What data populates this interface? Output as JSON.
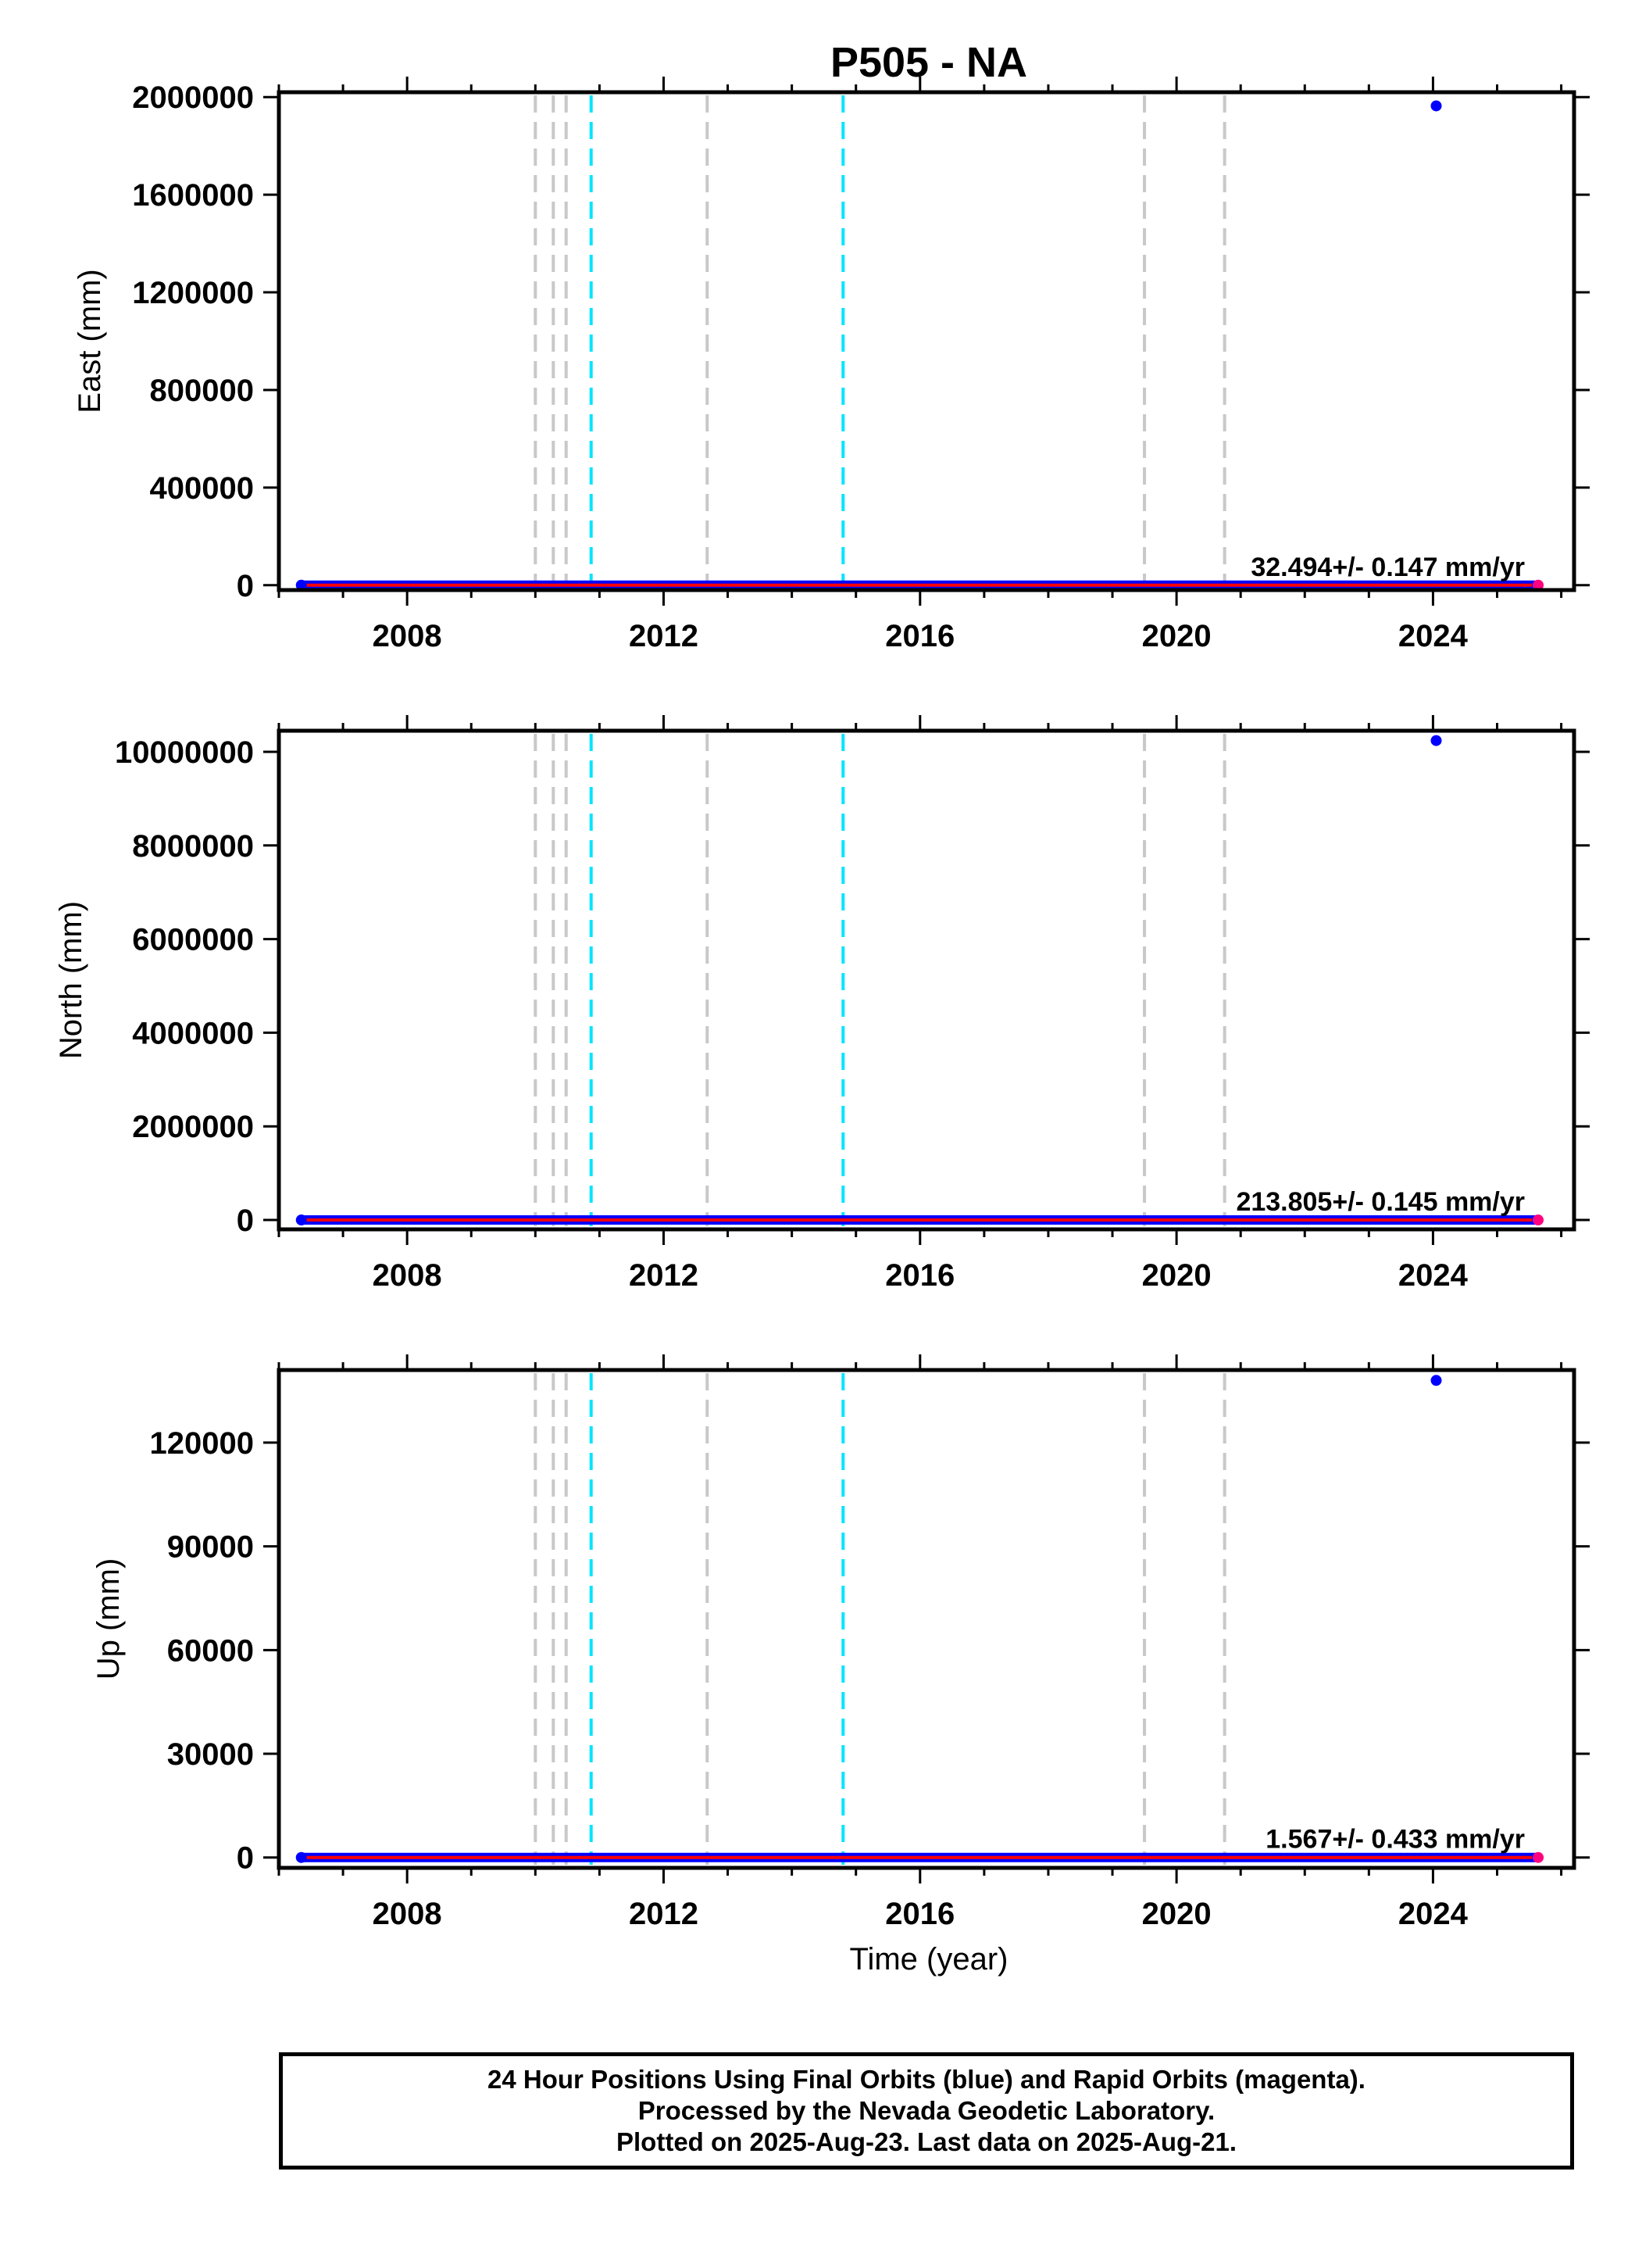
{
  "chart_data": {
    "type": "scatter",
    "title": "P505 - NA",
    "xlabel": "Time (year)",
    "xlim": [
      2006.0,
      2026.2
    ],
    "x_ticks": [
      2008,
      2012,
      2016,
      2020,
      2024
    ],
    "x_tick_labels": [
      "2008",
      "2012",
      "2016",
      "2020",
      "2024"
    ],
    "x_minor_ticks": [
      2006,
      2007,
      2009,
      2010,
      2011,
      2013,
      2014,
      2015,
      2017,
      2018,
      2019,
      2021,
      2022,
      2023,
      2025,
      2026
    ],
    "data_range": [
      2006.35,
      2025.64
    ],
    "event_lines": [
      {
        "x": 2010.0,
        "color": "#c8c8c8"
      },
      {
        "x": 2010.28,
        "color": "#c8c8c8"
      },
      {
        "x": 2010.48,
        "color": "#c8c8c8"
      },
      {
        "x": 2010.87,
        "color": "#00e5ff"
      },
      {
        "x": 2012.68,
        "color": "#c8c8c8"
      },
      {
        "x": 2014.8,
        "color": "#00e5ff"
      },
      {
        "x": 2019.5,
        "color": "#c8c8c8"
      },
      {
        "x": 2020.75,
        "color": "#c8c8c8"
      }
    ],
    "panels": [
      {
        "ylabel": "East (mm)",
        "ylim": [
          -20000,
          2020000
        ],
        "y_ticks": [
          0,
          400000,
          800000,
          1200000,
          1600000,
          2000000
        ],
        "y_tick_labels": [
          "0",
          "400000",
          "800000",
          "1200000",
          "1600000",
          "2000000"
        ],
        "rate_text": "32.494+/- 0.147 mm/yr",
        "outlier": {
          "x": 2024.05,
          "y": 1964000
        },
        "baseline": 0
      },
      {
        "ylabel": "North (mm)",
        "ylim": [
          -200000,
          10450000
        ],
        "y_ticks": [
          0,
          2000000,
          4000000,
          6000000,
          8000000,
          10000000
        ],
        "y_tick_labels": [
          "0",
          "2000000",
          "4000000",
          "6000000",
          "8000000",
          "10000000"
        ],
        "rate_text": "213.805+/- 0.145 mm/yr",
        "outlier": {
          "x": 2024.05,
          "y": 10240000
        },
        "baseline": 0
      },
      {
        "ylabel": "Up (mm)",
        "ylim": [
          -3000,
          141000
        ],
        "y_ticks": [
          0,
          30000,
          60000,
          90000,
          120000
        ],
        "y_tick_labels": [
          "0",
          "30000",
          "60000",
          "90000",
          "120000"
        ],
        "rate_text": "1.567+/- 0.433 mm/yr",
        "outlier": {
          "x": 2024.05,
          "y": 138000
        },
        "baseline": 0
      }
    ],
    "series": [
      {
        "name": "Final Orbits",
        "color": "#0000ff"
      },
      {
        "name": "Rapid Orbits",
        "color": "#ff0080"
      }
    ],
    "trend_color": "#ff0000",
    "grid": false
  },
  "footer": {
    "line1": "24 Hour Positions Using Final Orbits (blue) and Rapid Orbits (magenta).",
    "line2": "Processed by the Nevada Geodetic Laboratory.",
    "line3": "Plotted on 2025-Aug-23. Last data on 2025-Aug-21."
  }
}
